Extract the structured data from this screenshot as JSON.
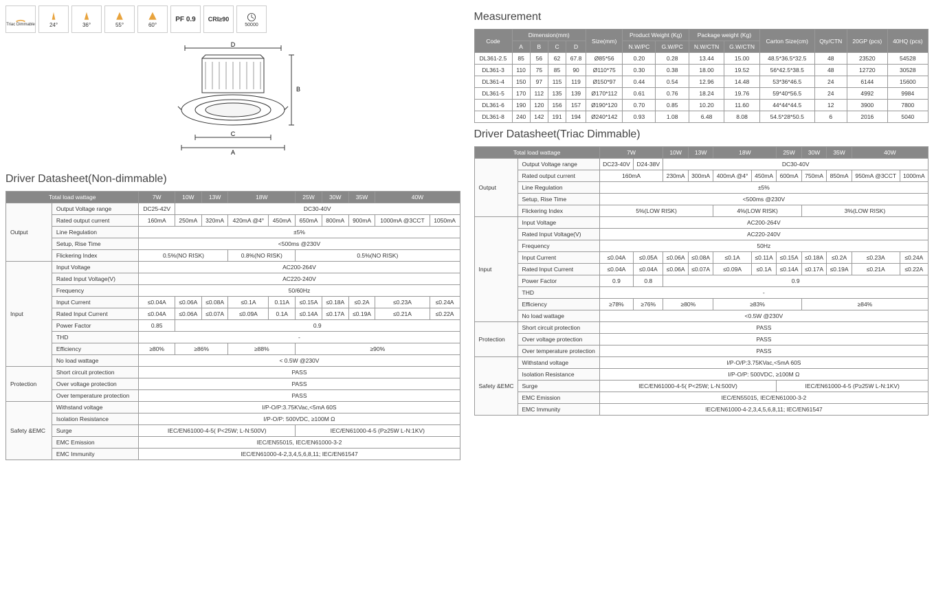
{
  "icons": {
    "labels": [
      "Triac Dimmable",
      "24°",
      "36°",
      "55°",
      "60°",
      "PF 0.9",
      "CRI≥90",
      "50000"
    ]
  },
  "meas": {
    "title": "Measurement",
    "head1": [
      "Code",
      "Dimension(mm)",
      "Size(mm)",
      "Product Weight (Kg)",
      "Package weight (Kg)",
      "Carton Size(cm)",
      "Qty/CTN",
      "20GP (pcs)",
      "40HQ (pcs)"
    ],
    "head2": [
      "A",
      "B",
      "C",
      "D",
      "N.W/PC",
      "G.W/PC",
      "N.W/CTN",
      "G.W/CTN"
    ],
    "rows": [
      [
        "DL361-2.5",
        "85",
        "56",
        "62",
        "67.8",
        "Ø85*56",
        "0.20",
        "0.28",
        "13.44",
        "15.00",
        "48.5*36.5*32.5",
        "48",
        "23520",
        "54528"
      ],
      [
        "DL361-3",
        "110",
        "75",
        "85",
        "90",
        "Ø110*75",
        "0.30",
        "0.38",
        "18.00",
        "19.52",
        "56*42.5*38.5",
        "48",
        "12720",
        "30528"
      ],
      [
        "DL361-4",
        "150",
        "97",
        "115",
        "119",
        "Ø150*97",
        "0.44",
        "0.54",
        "12.96",
        "14.48",
        "53*36*46.5",
        "24",
        "6144",
        "15600"
      ],
      [
        "DL361-5",
        "170",
        "112",
        "135",
        "139",
        "Ø170*112",
        "0.61",
        "0.76",
        "18.24",
        "19.76",
        "59*40*56.5",
        "24",
        "4992",
        "9984"
      ],
      [
        "DL361-6",
        "190",
        "120",
        "156",
        "157",
        "Ø190*120",
        "0.70",
        "0.85",
        "10.20",
        "11.60",
        "44*44*44.5",
        "12",
        "3900",
        "7800"
      ],
      [
        "DL361-8",
        "240",
        "142",
        "191",
        "194",
        "Ø240*142",
        "0.93",
        "1.08",
        "6.48",
        "8.08",
        "54.5*28*50.5",
        "6",
        "2016",
        "5040"
      ]
    ]
  },
  "nd": {
    "title": "Driver Datasheet(Non-dimmable)",
    "watts": [
      "7W",
      "10W",
      "13W",
      "18W",
      "25W",
      "30W",
      "35W",
      "40W"
    ],
    "ovr": {
      "l": "Output Voltage range",
      "v": [
        "DC25-42V",
        "DC30-40V"
      ]
    },
    "roc": {
      "l": "Rated output current",
      "v": [
        "160mA",
        "250mA",
        "320mA",
        "420mA @4°",
        "450mA",
        "650mA",
        "800mA",
        "900mA",
        "1000mA @3CCT",
        "1050mA"
      ]
    },
    "lr": {
      "l": "Line Regulation",
      "v": "±5%"
    },
    "srt": {
      "l": "Setup, Rise Time",
      "v": "<500ms @230V"
    },
    "fi": {
      "l": "Flickering Index",
      "v": [
        "0.5%(NO RISK)",
        "0.8%(NO RISK)",
        "0.5%(NO RISK)"
      ]
    },
    "iv": {
      "l": "Input Voltage",
      "v": "AC200-264V"
    },
    "riv": {
      "l": "Rated Input Voltage(V)",
      "v": "AC220-240V"
    },
    "fr": {
      "l": "Frequency",
      "v": "50/60Hz"
    },
    "ic": {
      "l": "Input Current",
      "v": [
        "≤0.04A",
        "≤0.06A",
        "≤0.08A",
        "≤0.1A",
        "0.11A",
        "≤0.15A",
        "≤0.18A",
        "≤0.2A",
        "≤0.23A",
        "≤0.24A"
      ]
    },
    "ric": {
      "l": "Rated Input Current",
      "v": [
        "≤0.04A",
        "≤0.06A",
        "≤0.07A",
        "≤0.09A",
        "0.1A",
        "≤0.14A",
        "≤0.17A",
        "≤0.19A",
        "≤0.21A",
        "≤0.22A"
      ]
    },
    "pf": {
      "l": "Power Factor",
      "v": [
        "0.85",
        "0.9"
      ]
    },
    "thd": {
      "l": "THD",
      "v": "-"
    },
    "eff": {
      "l": "Efficiency",
      "v": [
        "≥80%",
        "≥86%",
        "≥88%",
        "≥90%"
      ]
    },
    "nlw": {
      "l": "No load wattage",
      "v": "< 0.5W @230V"
    },
    "scp": {
      "l": "Short circuit protection",
      "v": "PASS"
    },
    "ovp": {
      "l": "Over voltage protection",
      "v": "PASS"
    },
    "otp": {
      "l": "Over temperature protection",
      "v": "PASS"
    },
    "wv": {
      "l": "Withstand voltage",
      "v": "I/P-O/P:3.75KVac,<5mA 60S"
    },
    "ir": {
      "l": "Isolation Resistance",
      "v": "I/P-O/P: 500VDC, ≥100M Ω"
    },
    "sg": {
      "l": "Surge",
      "v": [
        "IEC/EN61000-4-5( P<25W; L-N:500V)",
        "IEC/EN61000-4-5  (P≥25W L-N:1KV)"
      ]
    },
    "eme": {
      "l": "EMC Emission",
      "v": "IEC/EN55015, IEC/EN61000-3-2"
    },
    "emi": {
      "l": "EMC Immunity",
      "v": "IEC/EN61000-4-2,3,4,5,6,8,11; IEC/EN61547"
    }
  },
  "td": {
    "title": "Driver Datasheet(Triac Dimmable)",
    "watts": [
      "7W",
      "10W",
      "13W",
      "18W",
      "25W",
      "30W",
      "35W",
      "40W"
    ],
    "ovr": {
      "l": "Output Voltage range",
      "v": [
        "DC23-40V",
        "D24-38V",
        "DC30-40V"
      ]
    },
    "roc": {
      "l": "Rated output current",
      "v": [
        "160mA",
        "230mA",
        "300mA",
        "400mA @4°",
        "450mA",
        "600mA",
        "750mA",
        "850mA",
        "950mA @3CCT",
        "1000mA"
      ]
    },
    "lr": {
      "l": "Line Regulation",
      "v": "±5%"
    },
    "srt": {
      "l": "Setup, Rise Time",
      "v": "<500ms @230V"
    },
    "fi": {
      "l": "Flickering Index",
      "v": [
        "5%(LOW RISK)",
        "4%(LOW RISK)",
        "3%(LOW RISK)"
      ]
    },
    "iv": {
      "l": "Input Voltage",
      "v": "AC200-264V"
    },
    "riv": {
      "l": "Rated Input Voltage(V)",
      "v": "AC220-240V"
    },
    "fr": {
      "l": "Frequency",
      "v": "50Hz"
    },
    "ic": {
      "l": "Input Current",
      "v": [
        "≤0.04A",
        "≤0.05A",
        "≤0.06A",
        "≤0.08A",
        "≤0.1A",
        "≤0.11A",
        "≤0.15A",
        "≤0.18A",
        "≤0.2A",
        "≤0.23A",
        "≤0.24A"
      ]
    },
    "ric": {
      "l": "Rated Input Current",
      "v": [
        "≤0.04A",
        "≤0.04A",
        "≤0.06A",
        "≤0.07A",
        "≤0.09A",
        "≤0.1A",
        "≤0.14A",
        "≤0.17A",
        "≤0.19A",
        "≤0.21A",
        "≤0.22A"
      ]
    },
    "pf": {
      "l": "Power Factor",
      "v": [
        "0.9",
        "0.8",
        "0.9"
      ]
    },
    "thd": {
      "l": "THD",
      "v": "-"
    },
    "eff": {
      "l": "Efficiency",
      "v": [
        "≥78%",
        "≥76%",
        "≥80%",
        "≥83%",
        "≥84%"
      ]
    },
    "nlw": {
      "l": "No load wattage",
      "v": "<0.5W @230V"
    },
    "scp": {
      "l": "Short circuit protection",
      "v": "PASS"
    },
    "ovp": {
      "l": "Over voltage protection",
      "v": "PASS"
    },
    "otp": {
      "l": "Over temperature protection",
      "v": "PASS"
    },
    "wv": {
      "l": "Withstand voltage",
      "v": "I/P-O/P:3.75KVac,<5mA 60S"
    },
    "ir": {
      "l": "Isolation Resistance",
      "v": "I/P-O/P: 500VDC, ≥100M Ω"
    },
    "sg": {
      "l": "Surge",
      "v": [
        "IEC/EN61000-4-5( P<25W; L-N:500V)",
        "IEC/EN61000-4-5  (P≥25W L-N:1KV)"
      ]
    },
    "eme": {
      "l": "EMC Emission",
      "v": "IEC/EN55015, IEC/EN61000-3-2"
    },
    "emi": {
      "l": "EMC Immunity",
      "v": "IEC/EN61000-4-2,3,4,5,6,8,11; IEC/EN61547"
    }
  },
  "s": {
    "tlw": "Total load wattage",
    "out": "Output",
    "in": "Input",
    "prot": "Protection",
    "se": "Safety &EMC"
  }
}
